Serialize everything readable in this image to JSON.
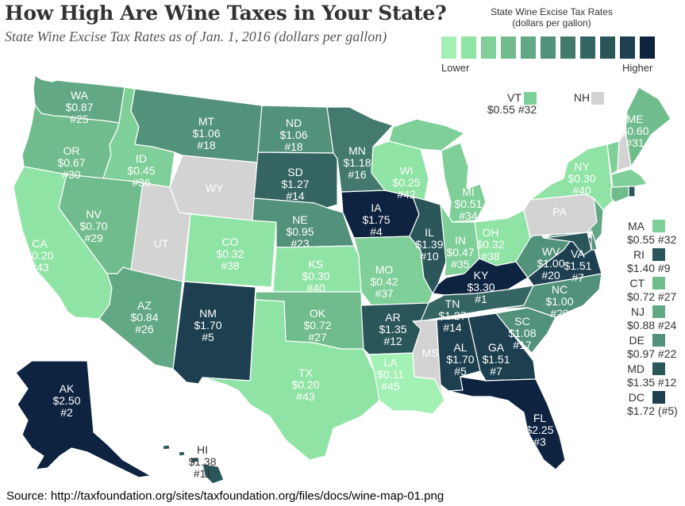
{
  "title": "How High Are Wine Taxes in Your State?",
  "subtitle": "State Wine Excise Tax Rates as of Jan. 1, 2016 (dollars per gallon)",
  "legend": {
    "title_line1": "State Wine Excise Tax Rates",
    "title_line2": "(dollars per gallon)",
    "low_label": "Lower",
    "high_label": "Higher",
    "colors": [
      "#a3f0b4",
      "#8fe3a4",
      "#7fcf98",
      "#70bc8c",
      "#62a884",
      "#52917a",
      "#437a6d",
      "#356563",
      "#2a5559",
      "#1d3f50",
      "#0d2340"
    ]
  },
  "source": "Source: http://taxfoundation.org/sites/taxfoundation.org/files/docs/wine-map-01.png",
  "colors": {
    "no_data": "#d3d3d3"
  },
  "chart_data": {
    "type": "choropleth",
    "states": [
      {
        "abbr": "WA",
        "rate": "$0.87",
        "rank": "#25",
        "color": "#62a884"
      },
      {
        "abbr": "OR",
        "rate": "$0.67",
        "rank": "#30",
        "color": "#70bc8c"
      },
      {
        "abbr": "CA",
        "rate": "$0.20",
        "rank": "#43",
        "color": "#8fe3a4"
      },
      {
        "abbr": "ID",
        "rate": "$0.45",
        "rank": "#36",
        "color": "#7fcf98"
      },
      {
        "abbr": "NV",
        "rate": "$0.70",
        "rank": "#29",
        "color": "#70bc8c"
      },
      {
        "abbr": "MT",
        "rate": "$1.06",
        "rank": "#18",
        "color": "#52917a"
      },
      {
        "abbr": "WY",
        "rate": "",
        "rank": "",
        "color": "#d3d3d3"
      },
      {
        "abbr": "UT",
        "rate": "",
        "rank": "",
        "color": "#d3d3d3"
      },
      {
        "abbr": "AZ",
        "rate": "$0.84",
        "rank": "#26",
        "color": "#62a884"
      },
      {
        "abbr": "CO",
        "rate": "$0.32",
        "rank": "#38",
        "color": "#8fe3a4"
      },
      {
        "abbr": "NM",
        "rate": "$1.70",
        "rank": "#5",
        "color": "#1d3f50"
      },
      {
        "abbr": "ND",
        "rate": "$1.06",
        "rank": "#18",
        "color": "#52917a"
      },
      {
        "abbr": "SD",
        "rate": "$1.27",
        "rank": "#14",
        "color": "#356563"
      },
      {
        "abbr": "NE",
        "rate": "$0.95",
        "rank": "#23",
        "color": "#52917a"
      },
      {
        "abbr": "KS",
        "rate": "$0.30",
        "rank": "#40",
        "color": "#8fe3a4"
      },
      {
        "abbr": "OK",
        "rate": "$0.72",
        "rank": "#27",
        "color": "#70bc8c"
      },
      {
        "abbr": "TX",
        "rate": "$0.20",
        "rank": "#43",
        "color": "#8fe3a4"
      },
      {
        "abbr": "MN",
        "rate": "$1.18",
        "rank": "#16",
        "color": "#437a6d"
      },
      {
        "abbr": "IA",
        "rate": "$1.75",
        "rank": "#4",
        "color": "#0d2340"
      },
      {
        "abbr": "MO",
        "rate": "$0.42",
        "rank": "#37",
        "color": "#7fcf98"
      },
      {
        "abbr": "AR",
        "rate": "$1.35",
        "rank": "#12",
        "color": "#2a5559"
      },
      {
        "abbr": "LA",
        "rate": "$0.11",
        "rank": "#45",
        "color": "#a3f0b4"
      },
      {
        "abbr": "WI",
        "rate": "$0.25",
        "rank": "#42",
        "color": "#8fe3a4"
      },
      {
        "abbr": "IL",
        "rate": "$1.39",
        "rank": "#10",
        "color": "#2a5559"
      },
      {
        "abbr": "MI",
        "rate": "$0.51",
        "rank": "#34",
        "color": "#7fcf98"
      },
      {
        "abbr": "IN",
        "rate": "$0.47",
        "rank": "#35",
        "color": "#7fcf98"
      },
      {
        "abbr": "OH",
        "rate": "$0.32",
        "rank": "#38",
        "color": "#8fe3a4"
      },
      {
        "abbr": "KY",
        "rate": "$3.30",
        "rank": "#1",
        "color": "#0d2340"
      },
      {
        "abbr": "TN",
        "rate": "$1.27",
        "rank": "#14",
        "color": "#356563"
      },
      {
        "abbr": "MS",
        "rate": "",
        "rank": "",
        "color": "#d3d3d3"
      },
      {
        "abbr": "AL",
        "rate": "$1.70",
        "rank": "#5",
        "color": "#1d3f50"
      },
      {
        "abbr": "GA",
        "rate": "$1.51",
        "rank": "#7",
        "color": "#1d3f50"
      },
      {
        "abbr": "FL",
        "rate": "$2.25",
        "rank": "#3",
        "color": "#0d2340"
      },
      {
        "abbr": "SC",
        "rate": "$1.08",
        "rank": "#17",
        "color": "#52917a"
      },
      {
        "abbr": "NC",
        "rate": "$1.00",
        "rank": "#20",
        "color": "#52917a"
      },
      {
        "abbr": "VA",
        "rate": "$1.51",
        "rank": "#7",
        "color": "#1d3f50"
      },
      {
        "abbr": "WV",
        "rate": "$1.00",
        "rank": "#20",
        "color": "#52917a"
      },
      {
        "abbr": "PA",
        "rate": "",
        "rank": "",
        "color": "#d3d3d3"
      },
      {
        "abbr": "NY",
        "rate": "$0.30",
        "rank": "#40",
        "color": "#8fe3a4"
      },
      {
        "abbr": "ME",
        "rate": "$0.60",
        "rank": "#31",
        "color": "#70bc8c"
      },
      {
        "abbr": "VT",
        "rate": "$0.55",
        "rank": "#32",
        "color": "#7fcf98"
      },
      {
        "abbr": "NH",
        "rate": "",
        "rank": "",
        "color": "#d3d3d3"
      },
      {
        "abbr": "MA",
        "rate": "$0.55",
        "rank": "#32",
        "color": "#7fcf98"
      },
      {
        "abbr": "RI",
        "rate": "$1.40",
        "rank": "#9",
        "color": "#2a5559"
      },
      {
        "abbr": "CT",
        "rate": "$0.72",
        "rank": "#27",
        "color": "#70bc8c"
      },
      {
        "abbr": "NJ",
        "rate": "$0.88",
        "rank": "#24",
        "color": "#62a884"
      },
      {
        "abbr": "DE",
        "rate": "$0.97",
        "rank": "#22",
        "color": "#52917a"
      },
      {
        "abbr": "MD",
        "rate": "$1.35",
        "rank": "#12",
        "color": "#2a5559"
      },
      {
        "abbr": "DC",
        "rate": "$1.72",
        "rank": "(#5)",
        "color": "#1d3f50"
      },
      {
        "abbr": "AK",
        "rate": "$2.50",
        "rank": "#2",
        "color": "#0d2340"
      },
      {
        "abbr": "HI",
        "rate": "$1.38",
        "rank": "#11",
        "color": "#2a5559"
      }
    ]
  }
}
